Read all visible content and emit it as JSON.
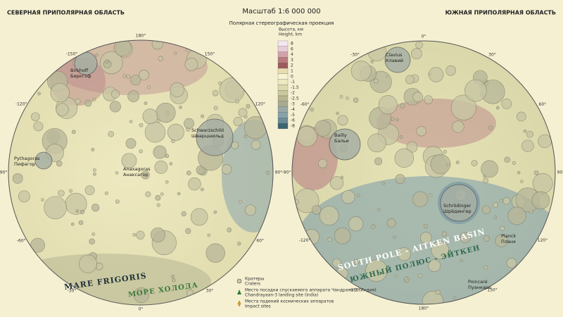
{
  "header": {
    "north_title": "СЕВЕРНАЯ ПРИПОЛЯРНАЯ ОБЛАСТЬ",
    "scale": "Масштаб 1:6 000 000",
    "projection": "Полярная стереографическая проекция",
    "south_title": "ЮЖНАЯ ПРИПОЛЯРНАЯ ОБЛАСТЬ"
  },
  "elevation_legend": {
    "title": "Высота, км",
    "title_en": "Height, km",
    "levels": [
      {
        "value": 8,
        "color": "#f4e8ef"
      },
      {
        "value": 6,
        "color": "#e8cdd6"
      },
      {
        "value": 4,
        "color": "#d2a2ab"
      },
      {
        "value": 3,
        "color": "#ba7a7d"
      },
      {
        "value": 2,
        "color": "#9c5a5c"
      },
      {
        "value": 1,
        "color": "#eadcb2"
      },
      {
        "value": 0,
        "color": "#f8f3d2"
      },
      {
        "value": -1,
        "color": "#ece8c0"
      },
      {
        "value": -1.5,
        "color": "#dddaad"
      },
      {
        "value": -2,
        "color": "#cac99d"
      },
      {
        "value": -2.5,
        "color": "#b6b58f"
      },
      {
        "value": -3,
        "color": "#a7aa8e"
      },
      {
        "value": -4,
        "color": "#9aa9a6"
      },
      {
        "value": -5,
        "color": "#87a2a9"
      },
      {
        "value": -6,
        "color": "#6a8c97"
      },
      {
        "value": -8,
        "color": "#3d6471"
      }
    ]
  },
  "north_map": {
    "longitudes": [
      "180°",
      "150°",
      "120°",
      "90°",
      "60°",
      "30°",
      "0°",
      "-30°",
      "-60°",
      "-90°",
      "-120°",
      "-150°"
    ],
    "labels": [
      "Birkhoff",
      "Биркгоф",
      "Schwarzschild",
      "Шварцшильд",
      "Pythagoras",
      "Пифагор",
      "Anaxagoras",
      "Анаксагор",
      "MARE FRIGORIS",
      "МОРЕ ХОЛОДА"
    ]
  },
  "south_map": {
    "longitudes": [
      "0°",
      "30°",
      "60°",
      "90°",
      "120°",
      "150°",
      "180°",
      "-150°",
      "-120°",
      "-90°",
      "-60°",
      "-30°"
    ],
    "labels": [
      "Clavius",
      "Клавий",
      "Bailly",
      "Бальи",
      "Schrödinger",
      "Шрёдингер",
      "SOUTH POLE - AITKEN BASIN",
      "ЮЖНЫЙ ПОЛЮС - ЭЙТКЕН",
      "Poincaré",
      "Пуанкаре",
      "Planck",
      "Планк"
    ]
  },
  "symbol_legend": [
    {
      "label": "Кратеры",
      "label_en": "Craters"
    },
    {
      "label": "Место посадки спускаемого аппарата Чандраян-3 (Индия)",
      "label_en": "Chandrayaan-3 landing site (India)"
    },
    {
      "label": "Места падений космических аппаратов",
      "label_en": "Impact sites"
    }
  ]
}
